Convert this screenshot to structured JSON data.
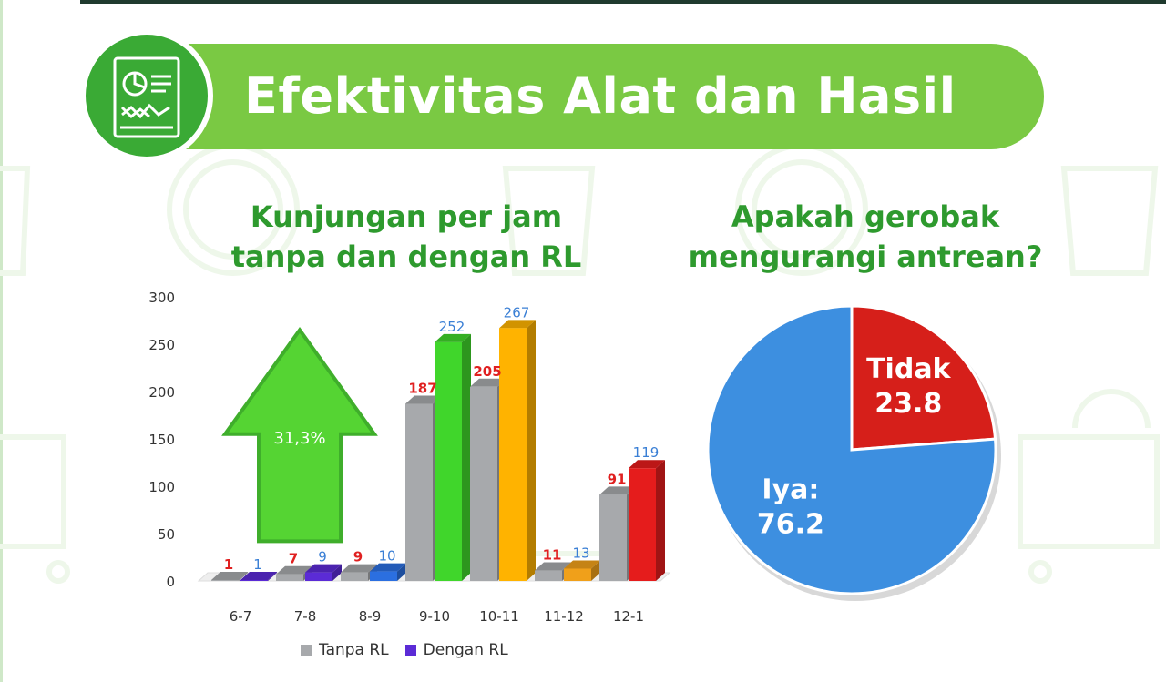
{
  "header": {
    "title": "Efektivitas Alat dan Hasil",
    "icon": "report-chart-icon"
  },
  "colors": {
    "banner_green": "#7ac943",
    "badge_green": "#3aaa35",
    "title_green": "#2e9a2e",
    "tanpa_gray": "#a7a9ac",
    "dengan_purple": "#5b2bd6",
    "label_red": "#e02020",
    "label_blue": "#3a7fd5",
    "pie_blue": "#3d8fe0",
    "pie_red": "#d61f1a",
    "arrow_green": "#55d433"
  },
  "chart_data": [
    {
      "type": "bar",
      "title_lines": [
        "Kunjungan per jam",
        "tanpa dan dengan RL"
      ],
      "categories": [
        "6-7",
        "7-8",
        "8-9",
        "9-10",
        "10-11",
        "11-12",
        "12-1"
      ],
      "series": [
        {
          "name": "Tanpa RL",
          "values": [
            1,
            7,
            9,
            187,
            205,
            11,
            91
          ]
        },
        {
          "name": "Dengan RL",
          "values": [
            1,
            9,
            10,
            252,
            267,
            13,
            119
          ]
        }
      ],
      "dengan_bar_colors": [
        "#5b2bd6",
        "#5b2bd6",
        "#2b6fe0",
        "#40d62b",
        "#ffb300",
        "#f0a01a",
        "#e51c1c"
      ],
      "ylim": [
        0,
        300
      ],
      "yticks": [
        0,
        50,
        100,
        150,
        200,
        250,
        300
      ],
      "xlabel": "",
      "ylabel": "",
      "annotation": {
        "text": "31,3%",
        "shape": "up-arrow"
      },
      "legend_position": "bottom"
    },
    {
      "type": "pie",
      "title_lines": [
        "Apakah gerobak",
        "mengurangi antrean?"
      ],
      "slices": [
        {
          "label": "Tidak",
          "value": 23.8,
          "color": "#d61f1a"
        },
        {
          "label": "Iya:",
          "value": 76.2,
          "color": "#3d8fe0"
        }
      ]
    }
  ]
}
